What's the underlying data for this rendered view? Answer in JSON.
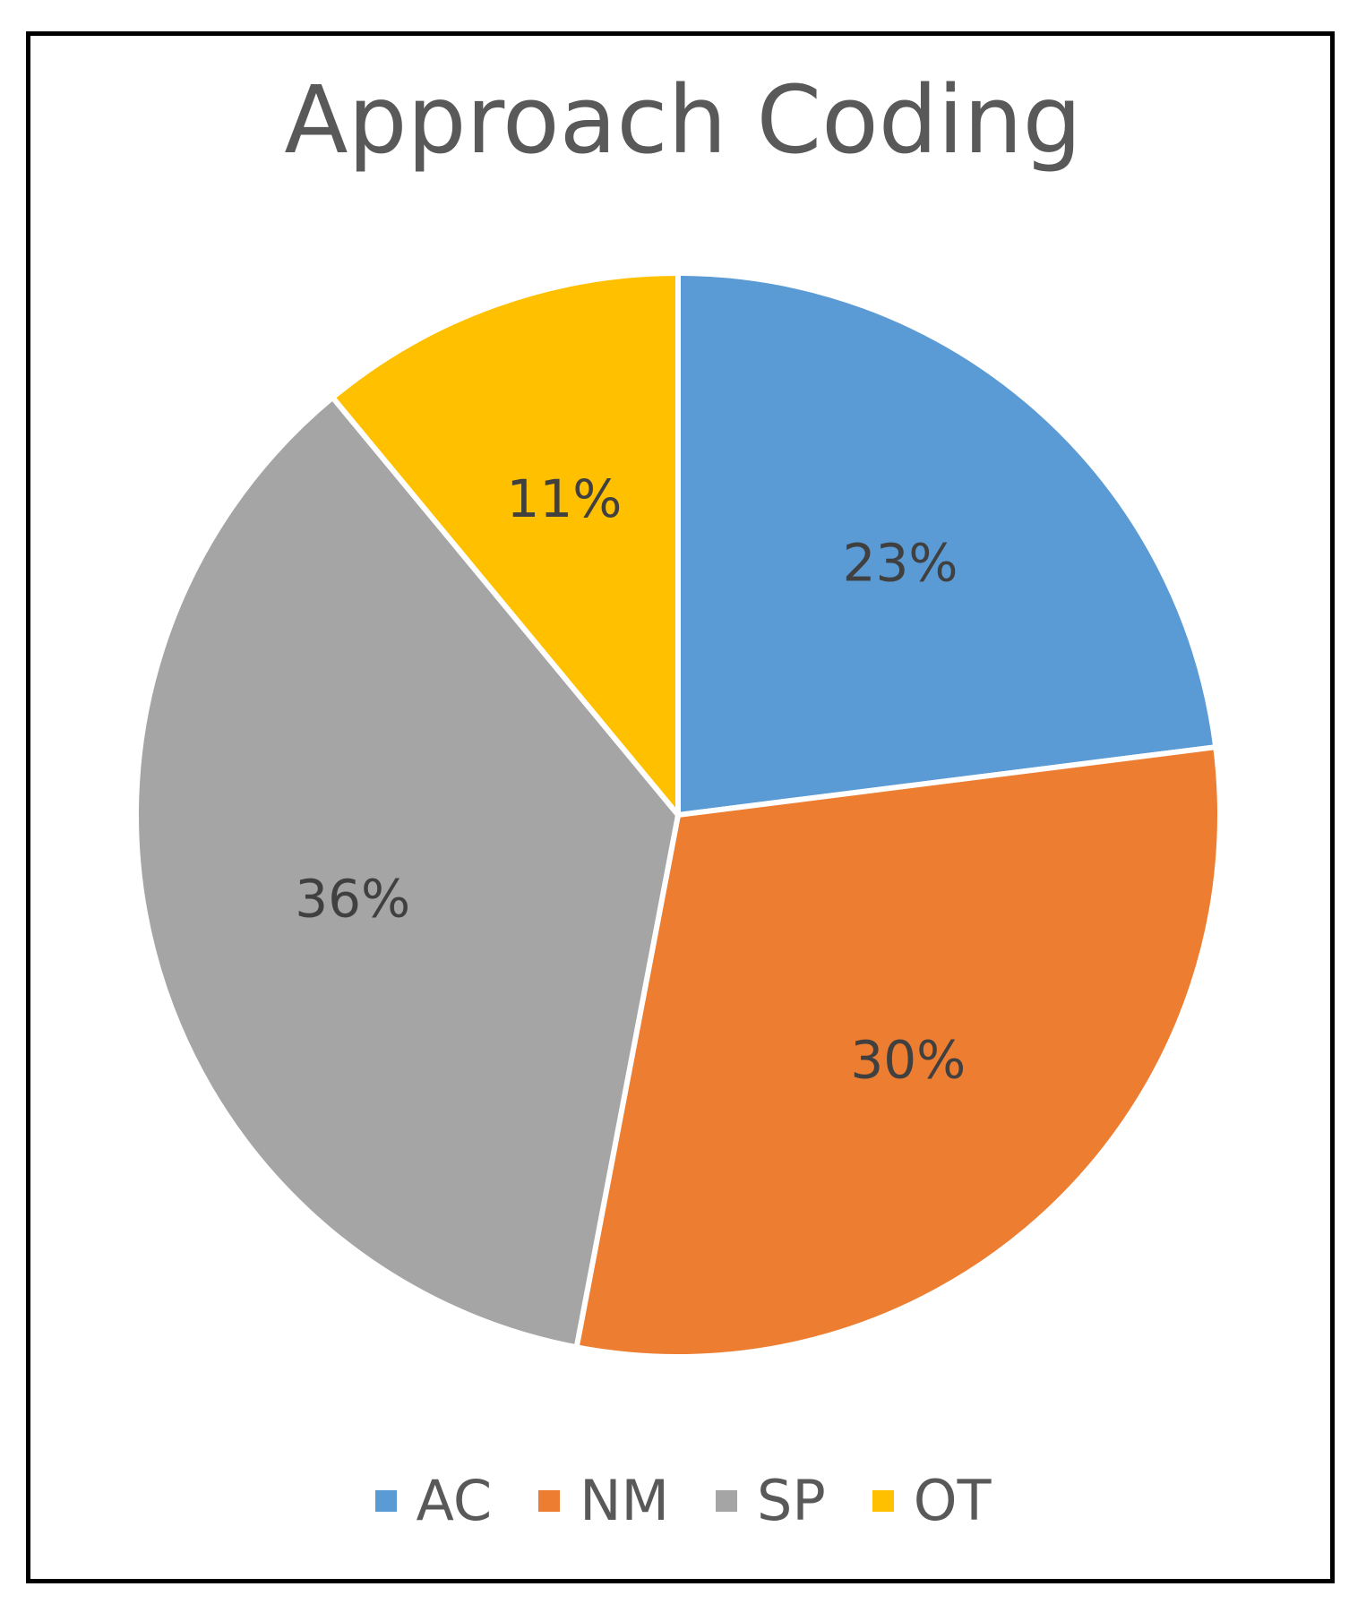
{
  "chart_data": {
    "type": "pie",
    "title": "Approach Coding",
    "categories": [
      "AC",
      "NM",
      "SP",
      "OT"
    ],
    "values": [
      23,
      30,
      36,
      11
    ],
    "value_labels": [
      "23%",
      "30%",
      "36%",
      "11%"
    ],
    "colors": [
      "#5B9BD5",
      "#ED7D31",
      "#A5A5A5",
      "#FFC000"
    ],
    "legend_position": "bottom",
    "start_angle": "12 o'clock",
    "direction": "clockwise"
  }
}
